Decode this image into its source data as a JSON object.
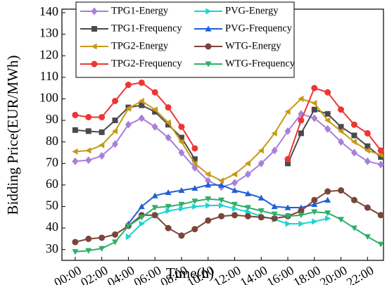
{
  "chart_data": {
    "type": "line",
    "x_label": "Time(h)",
    "y_label": "Bidding Price(EUR/MWh)",
    "x": [
      0,
      1,
      2,
      3,
      4,
      5,
      6,
      7,
      8,
      9,
      10,
      11,
      12,
      13,
      14,
      15,
      16,
      17,
      18,
      19,
      20,
      21,
      22,
      23
    ],
    "xlim": [
      -1,
      23.2
    ],
    "ylim": [
      25,
      140
    ],
    "xticks": [
      {
        "value": 0,
        "label": "00:00"
      },
      {
        "value": 2,
        "label": "02:00"
      },
      {
        "value": 4,
        "label": "04:00"
      },
      {
        "value": 6,
        "label": "06:00"
      },
      {
        "value": 8,
        "label": "08:00"
      },
      {
        "value": 10,
        "label": "10:00"
      },
      {
        "value": 12,
        "label": "12:00"
      },
      {
        "value": 14,
        "label": "14:00"
      },
      {
        "value": 16,
        "label": "16:00"
      },
      {
        "value": 18,
        "label": "18:00"
      },
      {
        "value": 20,
        "label": "20:00"
      },
      {
        "value": 22,
        "label": "22:00"
      }
    ],
    "yticks": [
      30,
      40,
      50,
      60,
      70,
      80,
      90,
      100,
      110,
      120,
      130,
      140
    ],
    "grid": false,
    "series": [
      {
        "name": "TPG1-Energy",
        "color": "#a97fd9",
        "marker": "diamond",
        "values": [
          71,
          71.5,
          73.5,
          79,
          88,
          91,
          87,
          82,
          75,
          68,
          62,
          59,
          61,
          65,
          70,
          76,
          85,
          93,
          91,
          86,
          80,
          75,
          71,
          69.5
        ]
      },
      {
        "name": "PVG-Energy",
        "color": "#1fd3d0",
        "marker": "right",
        "values": [
          null,
          null,
          null,
          null,
          36,
          42,
          46,
          48,
          49,
          50,
          50.5,
          50.5,
          49,
          47.5,
          45.5,
          44,
          42,
          42,
          43,
          44.5,
          null,
          null,
          null,
          null
        ]
      },
      {
        "name": "TPG1-Frequency",
        "color": "#4a4a4a",
        "marker": "square",
        "values": [
          85.5,
          85,
          84.5,
          90,
          96,
          97,
          94,
          88,
          82,
          72,
          null,
          null,
          null,
          null,
          null,
          null,
          70,
          84,
          95,
          93,
          87,
          83,
          78,
          73
        ]
      },
      {
        "name": "PVG-Frequency",
        "color": "#1f5fd6",
        "marker": "up",
        "values": [
          null,
          null,
          null,
          null,
          42,
          50,
          55,
          56.5,
          57.5,
          58.5,
          60,
          60,
          57.5,
          56,
          54,
          50,
          49.5,
          49.5,
          51,
          53,
          null,
          null,
          null,
          null
        ]
      },
      {
        "name": "TPG2-Energy",
        "color": "#c79a14",
        "marker": "left",
        "values": [
          75.5,
          76,
          78.5,
          85,
          95.5,
          99,
          95,
          89,
          80,
          70,
          65,
          62,
          65,
          70,
          76,
          84,
          94,
          100,
          98,
          90,
          85,
          80,
          76,
          74
        ]
      },
      {
        "name": "WTG-Energy",
        "color": "#7a4538",
        "marker": "circle",
        "values": [
          33.5,
          35,
          35.5,
          37,
          41,
          46,
          46,
          40,
          36.5,
          39.5,
          43.5,
          45.5,
          46,
          45.5,
          45,
          44.5,
          45.5,
          48,
          53,
          57,
          57.5,
          53,
          49.5,
          46
        ]
      },
      {
        "name": "TPG2-Frequency",
        "color": "#ee3535",
        "marker": "circle",
        "values": [
          92.5,
          91.5,
          91.5,
          99,
          106.5,
          107.5,
          103,
          96,
          87,
          77,
          null,
          null,
          null,
          null,
          null,
          null,
          72,
          90,
          105,
          103,
          95,
          88,
          84,
          76
        ]
      },
      {
        "name": "WTG-Frequency",
        "color": "#2fae6a",
        "marker": "down",
        "values": [
          29,
          29.5,
          30.5,
          33.5,
          41,
          45,
          49.5,
          50,
          51,
          52.5,
          53.5,
          53,
          51,
          49.5,
          48,
          46.5,
          45.5,
          46,
          47.5,
          47,
          44,
          40,
          36,
          32.5
        ]
      }
    ]
  }
}
